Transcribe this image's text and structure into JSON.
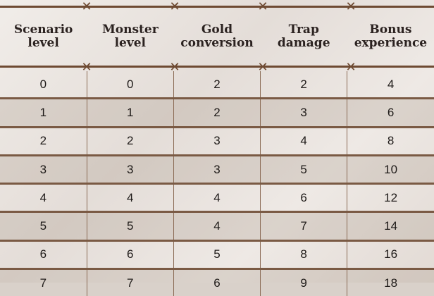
{
  "table": {
    "headers": [
      "Scenario\nlevel",
      "Monster\nlevel",
      "Gold\nconversion",
      "Trap\ndamage",
      "Bonus\nexperience"
    ],
    "rows": [
      [
        "0",
        "0",
        "2",
        "2",
        "4"
      ],
      [
        "1",
        "1",
        "2",
        "3",
        "6"
      ],
      [
        "2",
        "2",
        "3",
        "4",
        "8"
      ],
      [
        "3",
        "3",
        "3",
        "5",
        "10"
      ],
      [
        "4",
        "4",
        "4",
        "6",
        "12"
      ],
      [
        "5",
        "5",
        "4",
        "7",
        "14"
      ],
      [
        "6",
        "6",
        "5",
        "8",
        "16"
      ],
      [
        "7",
        "7",
        "6",
        "9",
        "18"
      ]
    ]
  },
  "colors": {
    "border": "#6e4a32",
    "text": "#1e1a18"
  }
}
